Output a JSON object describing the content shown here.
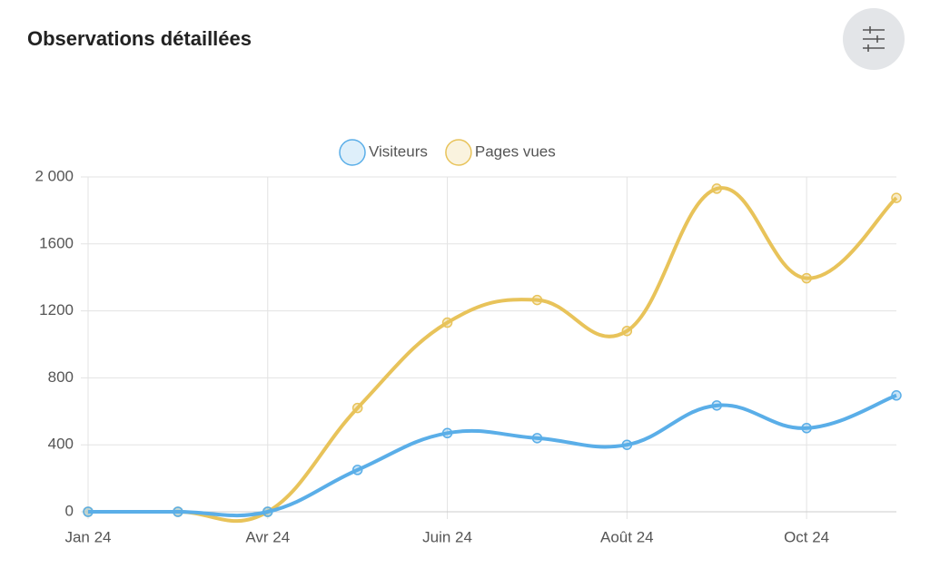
{
  "chart_data": {
    "type": "line",
    "title": "Observations détaillées",
    "categories": [
      "Jan 24",
      null,
      "Avr 24",
      null,
      "Juin 24",
      null,
      "Août 24",
      null,
      "Oct 24",
      null
    ],
    "series": [
      {
        "name": "Visiteurs",
        "color": "#5aaee8",
        "values": [
          0,
          0,
          0,
          250,
          470,
          440,
          400,
          635,
          500,
          695
        ]
      },
      {
        "name": "Pages vues",
        "color": "#e8c35a",
        "values": [
          0,
          0,
          0,
          620,
          1130,
          1265,
          1080,
          1930,
          1395,
          1875
        ]
      }
    ],
    "ylim": [
      0,
      2000
    ],
    "yticks": [
      0,
      400,
      800,
      1200,
      1600,
      {
        "value": 2000,
        "label": "2 000"
      }
    ],
    "grid": true,
    "legend": "top"
  }
}
